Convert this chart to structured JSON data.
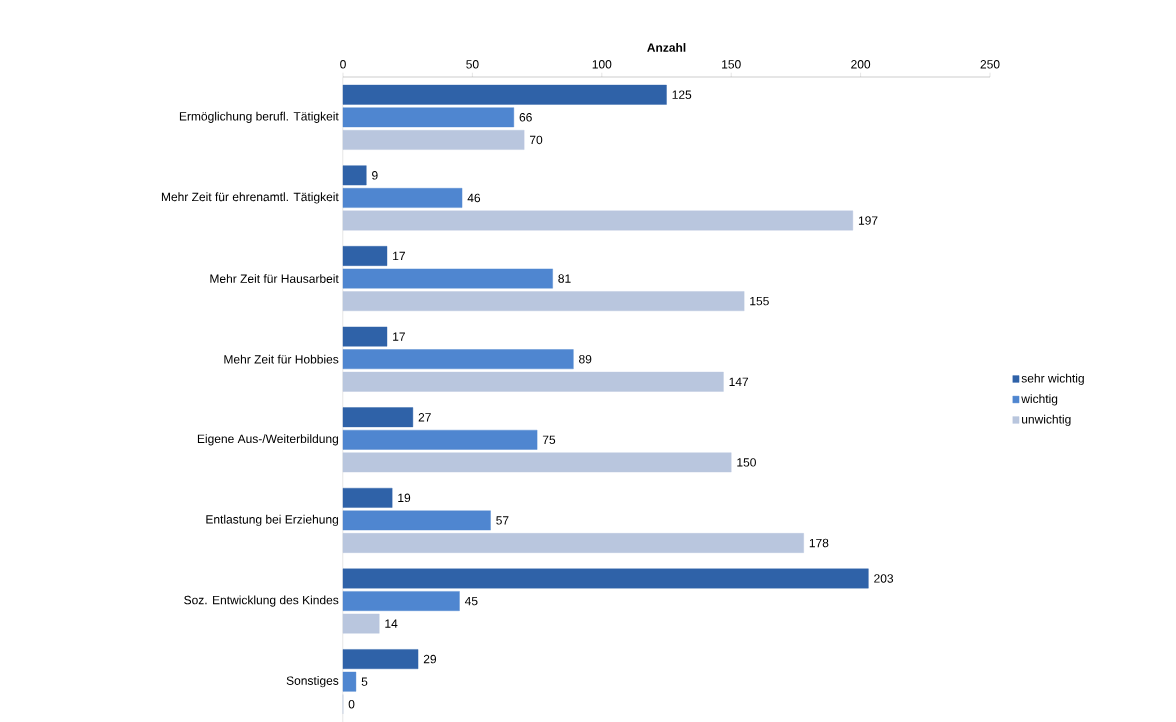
{
  "chart_data": {
    "type": "bar",
    "orientation": "horizontal",
    "xlabel": "Anzahl",
    "categories": [
      "Ermöglichung berufl. Tätigkeit",
      "Mehr Zeit für ehrenamtl. Tätigkeit",
      "Mehr Zeit für Hausarbeit",
      "Mehr Zeit für Hobbies",
      "Eigene Aus-/Weiterbildung",
      "Entlastung bei Erziehung",
      "Soz. Entwicklung des Kindes",
      "Sonstiges"
    ],
    "series": [
      {
        "name": "sehr wichtig",
        "color": "#2f62a8",
        "values": [
          125,
          9,
          17,
          17,
          27,
          19,
          203,
          29
        ]
      },
      {
        "name": "wichtig",
        "color": "#4f86d0",
        "values": [
          66,
          46,
          81,
          89,
          75,
          57,
          45,
          5
        ]
      },
      {
        "name": "unwichtig",
        "color": "#b9c6de",
        "values": [
          70,
          197,
          155,
          147,
          150,
          178,
          14,
          0
        ]
      }
    ],
    "xlim": [
      0,
      250
    ],
    "xticks": [
      0,
      50,
      100,
      150,
      200,
      250
    ],
    "data_labels": true,
    "legend": "right",
    "grid": false
  }
}
